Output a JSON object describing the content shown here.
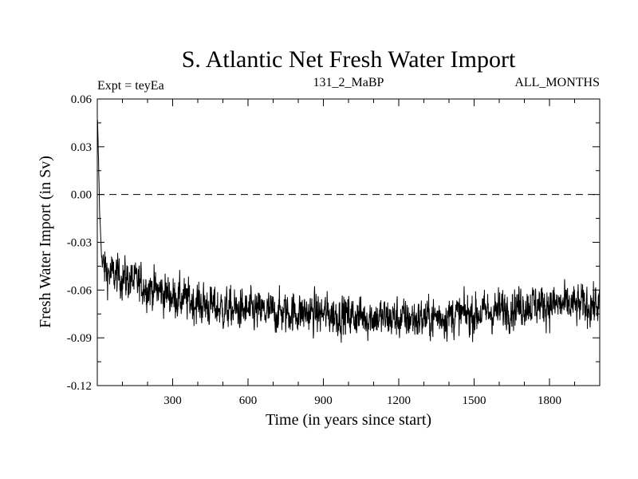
{
  "chart_data": {
    "type": "line",
    "title": "S. Atlantic Net Fresh Water Import",
    "subtitle_left": "Expt = teyEa",
    "subtitle_center": "131_2_MaBP",
    "subtitle_right": "ALL_MONTHS",
    "xlabel": "Time (in years since start)",
    "ylabel": "Fresh Water Import (in Sv)",
    "xlim": [
      0,
      2000
    ],
    "ylim": [
      -0.12,
      0.06
    ],
    "x_ticks": [
      300,
      600,
      900,
      1200,
      1500,
      1800
    ],
    "x_tick_labels": [
      "300",
      "600",
      "900",
      "1200",
      "1500",
      "1800"
    ],
    "y_ticks": [
      0.06,
      0.03,
      0.0,
      -0.03,
      -0.06,
      -0.09,
      -0.12
    ],
    "y_tick_labels": [
      "0.06",
      "0.03",
      "0.00",
      "-0.03",
      "-0.06",
      "-0.09",
      "-0.12"
    ],
    "reference_line": {
      "y": 0.0,
      "style": "dashed"
    },
    "series": [
      {
        "name": "Net Fresh Water Import",
        "x_start": 1,
        "x_step": 1,
        "trend": [
          [
            1,
            0.045
          ],
          [
            5,
            0.02
          ],
          [
            10,
            -0.015
          ],
          [
            20,
            -0.045
          ],
          [
            50,
            -0.05
          ],
          [
            100,
            -0.052
          ],
          [
            200,
            -0.058
          ],
          [
            300,
            -0.064
          ],
          [
            400,
            -0.068
          ],
          [
            500,
            -0.072
          ],
          [
            600,
            -0.073
          ],
          [
            700,
            -0.074
          ],
          [
            800,
            -0.074
          ],
          [
            900,
            -0.075
          ],
          [
            1000,
            -0.076
          ],
          [
            1100,
            -0.077
          ],
          [
            1200,
            -0.078
          ],
          [
            1300,
            -0.078
          ],
          [
            1400,
            -0.076
          ],
          [
            1500,
            -0.075
          ],
          [
            1600,
            -0.073
          ],
          [
            1700,
            -0.069
          ],
          [
            1800,
            -0.069
          ],
          [
            1900,
            -0.07
          ],
          [
            2000,
            -0.069
          ]
        ],
        "noise_amplitude": 0.0085,
        "color": "#000000"
      }
    ]
  }
}
